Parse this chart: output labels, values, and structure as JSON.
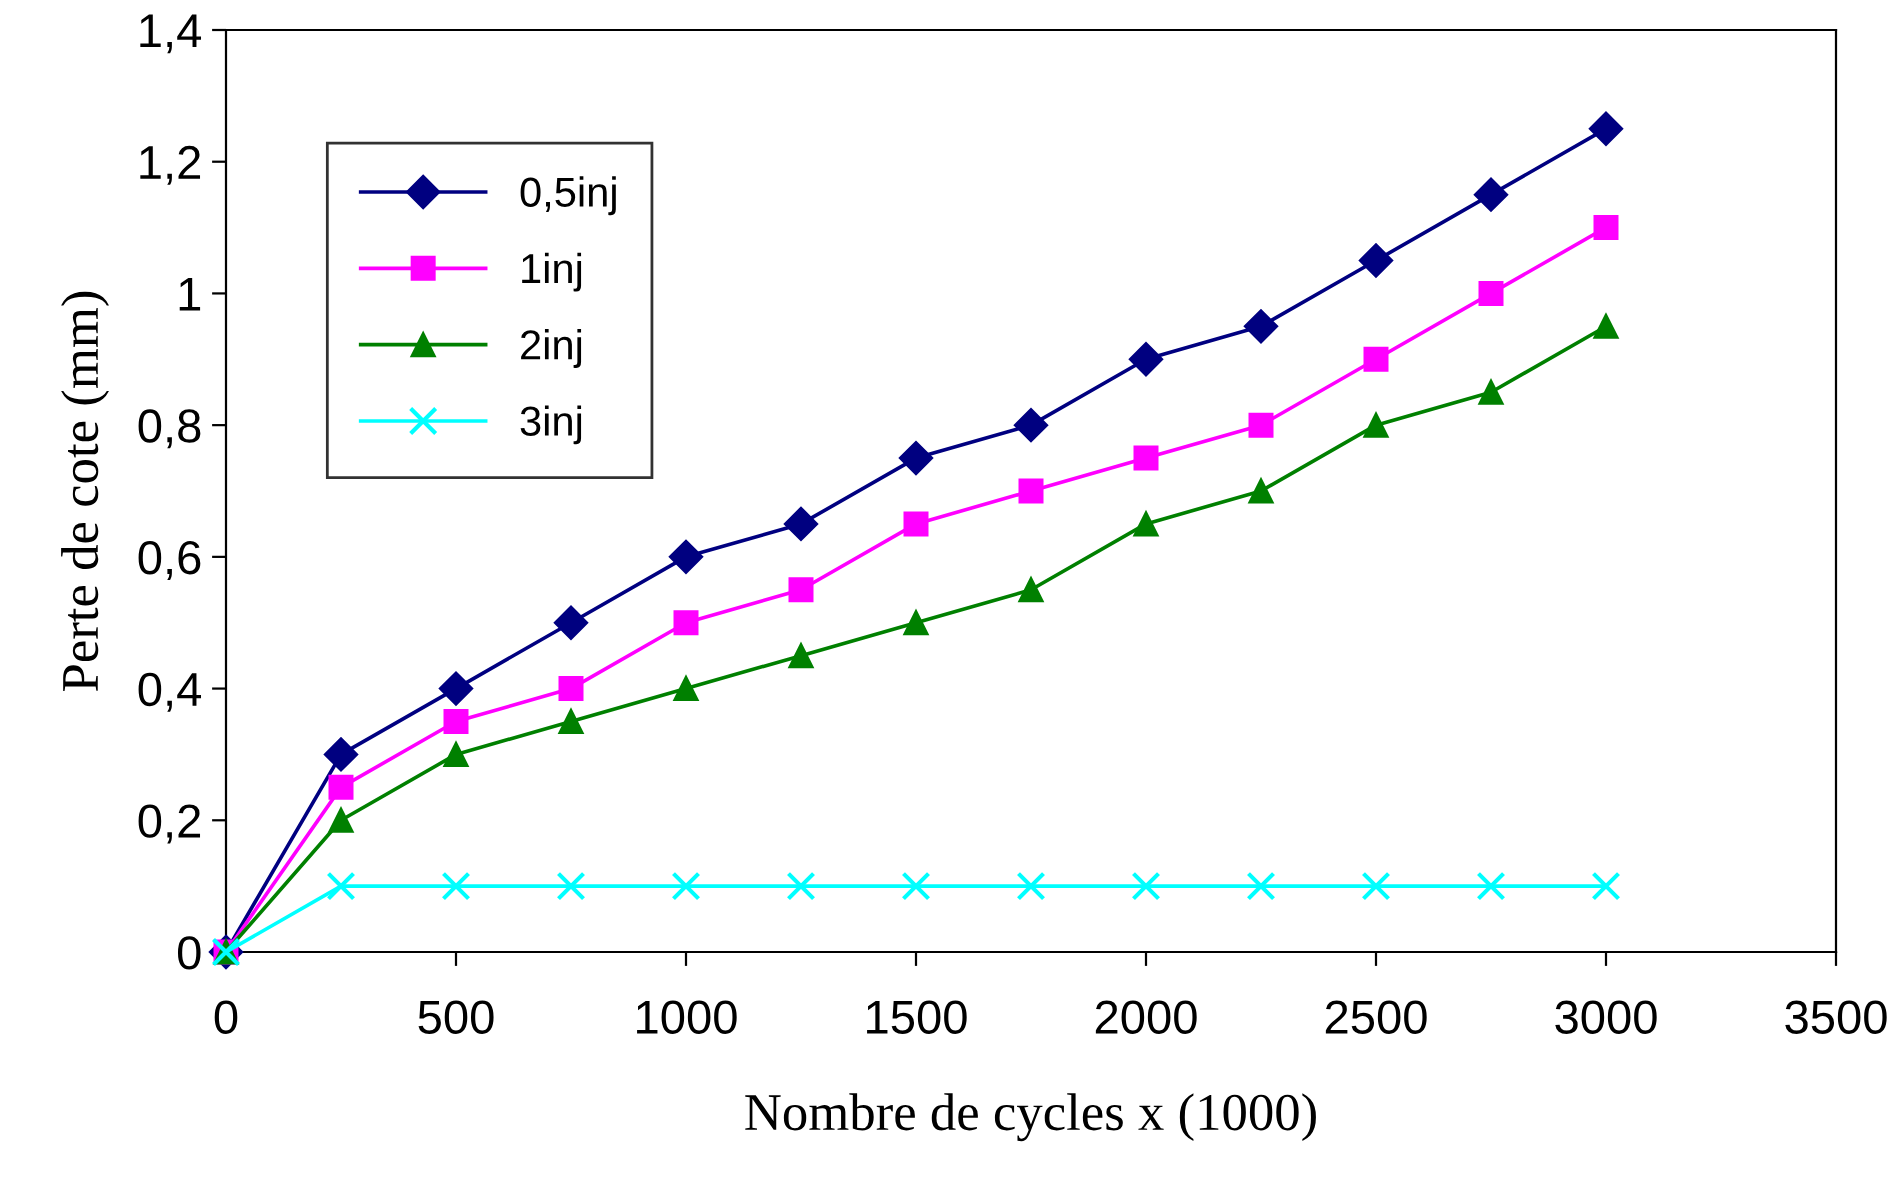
{
  "chart_data": {
    "type": "line",
    "xlabel": "Nombre de cycles x (1000)",
    "ylabel": "Perte de cote (mm)",
    "x": [
      0,
      250,
      500,
      750,
      1000,
      1250,
      1500,
      1750,
      2000,
      2250,
      2500,
      2750,
      3000
    ],
    "series": [
      {
        "name": "0,5inj",
        "color": "#000080",
        "marker": "diamond",
        "values": [
          0,
          0.3,
          0.4,
          0.5,
          0.6,
          0.65,
          0.75,
          0.8,
          0.9,
          0.95,
          1.05,
          1.15,
          1.25
        ]
      },
      {
        "name": "1inj",
        "color": "#ff00ff",
        "marker": "square",
        "values": [
          0,
          0.25,
          0.35,
          0.4,
          0.5,
          0.55,
          0.65,
          0.7,
          0.75,
          0.8,
          0.9,
          1.0,
          1.1
        ]
      },
      {
        "name": "2inj",
        "color": "#008000",
        "marker": "triangle",
        "values": [
          0,
          0.2,
          0.3,
          0.35,
          0.4,
          0.45,
          0.5,
          0.55,
          0.65,
          0.7,
          0.8,
          0.85,
          0.95
        ]
      },
      {
        "name": "3inj",
        "color": "#00ffff",
        "marker": "cross",
        "values": [
          0,
          0.1,
          0.1,
          0.1,
          0.1,
          0.1,
          0.1,
          0.1,
          0.1,
          0.1,
          0.1,
          0.1,
          0.1
        ]
      }
    ],
    "xlim": [
      0,
      3500
    ],
    "xticks": [
      0,
      500,
      1000,
      1500,
      2000,
      2500,
      3000,
      3500
    ],
    "ylim": [
      0,
      1.4
    ],
    "yticks": [
      0,
      {
        "value": 0.2,
        "label": "0,2"
      },
      {
        "value": 0.4,
        "label": "0,4"
      },
      {
        "value": 0.6,
        "label": "0,6"
      },
      {
        "value": 0.8,
        "label": "0,8"
      },
      1,
      {
        "value": 1.2,
        "label": "1,2"
      },
      {
        "value": 1.4,
        "label": "1,4"
      }
    ],
    "grid": false,
    "legend": "top left",
    "line_style": "solid"
  }
}
